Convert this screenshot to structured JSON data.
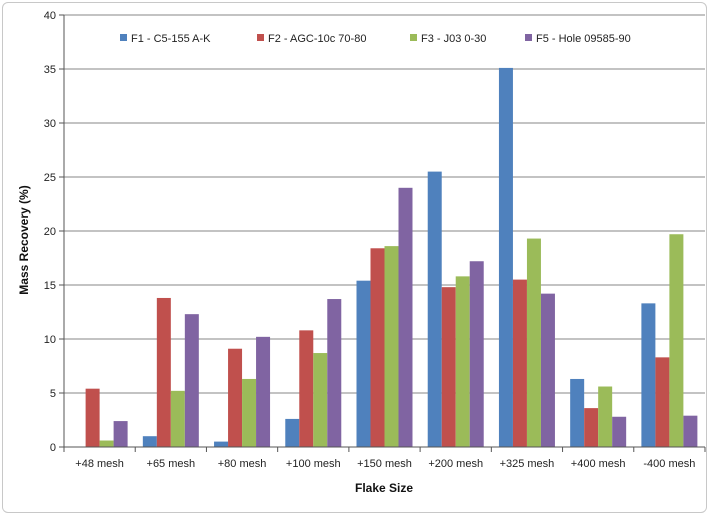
{
  "chart_data": {
    "type": "bar",
    "title": "",
    "xlabel": "Flake Size",
    "ylabel": "Mass Recovery (%)",
    "ylim": [
      0,
      40
    ],
    "yticks": [
      0,
      5,
      10,
      15,
      20,
      25,
      30,
      35,
      40
    ],
    "grid": true,
    "legend_position": "top",
    "categories": [
      "+48 mesh",
      "+65 mesh",
      "+80 mesh",
      "+100 mesh",
      "+150 mesh",
      "+200 mesh",
      "+325 mesh",
      "+400 mesh",
      "-400 mesh"
    ],
    "series": [
      {
        "name": "F1 - C5-155 A-K",
        "color": "#4f81bd",
        "values": [
          0,
          1.0,
          0.5,
          2.6,
          15.4,
          25.5,
          35.1,
          6.3,
          13.3
        ]
      },
      {
        "name": "F2 - AGC-10c 70-80",
        "color": "#c0504d",
        "values": [
          5.4,
          13.8,
          9.1,
          10.8,
          18.4,
          14.8,
          15.5,
          3.6,
          8.3
        ]
      },
      {
        "name": "F3 - J03 0-30",
        "color": "#9bbb59",
        "values": [
          0.6,
          5.2,
          6.3,
          8.7,
          18.6,
          15.8,
          19.3,
          5.6,
          19.7
        ]
      },
      {
        "name": "F5 - Hole 09585-90",
        "color": "#8064a2",
        "values": [
          2.4,
          12.3,
          10.2,
          13.7,
          24.0,
          17.2,
          14.2,
          2.8,
          2.9
        ]
      }
    ]
  }
}
